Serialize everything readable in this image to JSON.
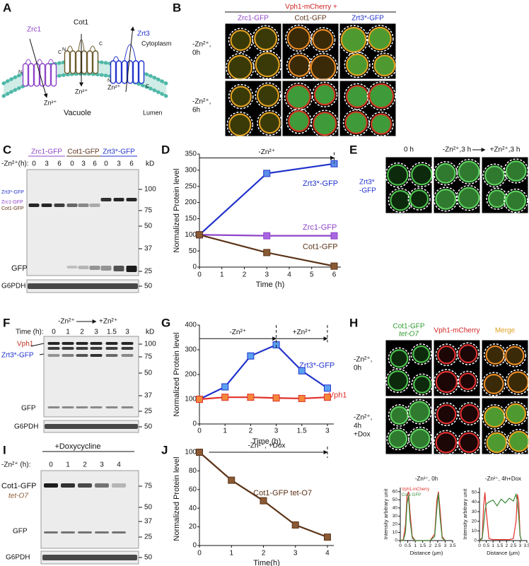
{
  "panel_a": {
    "letter": "A",
    "zrc1": "Zrc1",
    "cot1": "Cot1",
    "zrt3": "Zrt3",
    "cytoplasm": "Cytoplasm",
    "vacuole": "Vacuole",
    "lumen": "Lumen",
    "termini": [
      "N",
      "C",
      "N",
      "C",
      "N",
      "C"
    ],
    "ions": [
      "Zn²⁺",
      "Zn²⁺",
      "Zn²⁺"
    ]
  },
  "panel_b": {
    "letter": "B",
    "header": "Vph1-mCherry +",
    "columns": [
      "Zrc1-GFP",
      "Cot1-GFP",
      "Zrt3*-GFP"
    ],
    "rows": [
      [
        "-Zn²⁺,",
        "0h"
      ],
      [
        "-Zn²⁺,",
        "6h"
      ]
    ]
  },
  "panel_c": {
    "letter": "C",
    "groups": [
      "Zrc1-GFP",
      "Cot1-GFP",
      "Zrt3*-GFP"
    ],
    "axis_label": "-Zn²⁺(h):",
    "lanes": [
      "0",
      "3",
      "6",
      "0",
      "3",
      "6",
      "0",
      "3",
      "6"
    ],
    "kd": "kD",
    "markers": [
      "100",
      "75",
      "50",
      "37",
      "25",
      "50"
    ],
    "band_labels": [
      "Zrt3*-GFP",
      "Zrc1-GFP",
      "Cot1-GFP",
      "GFP",
      "G6PDH"
    ]
  },
  "panel_d": {
    "letter": "D"
  },
  "panel_e": {
    "letter": "E",
    "columns": [
      "0 h",
      "-Zn²⁺,3 h",
      "+Zn²⁺,3 h"
    ],
    "label": [
      "Zrt3*",
      "-GFP"
    ]
  },
  "panel_f": {
    "letter": "F",
    "treatments": [
      "-Zn²⁺",
      "+Zn²⁺"
    ],
    "axis_label": "Time (h):",
    "lanes": [
      "0",
      "1",
      "2",
      "3",
      "1.5",
      "3"
    ],
    "kd": "kD",
    "markers": [
      "100",
      "75",
      "50",
      "37",
      "25",
      "50"
    ],
    "band_labels": [
      "Vph1",
      "Zrt3*-GFP",
      "GFP",
      "G6PDH"
    ]
  },
  "panel_g": {
    "letter": "G"
  },
  "panel_h": {
    "letter": "H",
    "columns": [
      "Cot1-GFP",
      "tet-O7",
      "Vph1-mCherry",
      "Merge"
    ],
    "rows": [
      [
        "-Zn²⁺,",
        "0h"
      ],
      [
        "-Zn²⁺,",
        "4h",
        "+Dox"
      ]
    ]
  },
  "panel_i": {
    "letter": "I",
    "header": "+Doxycycline",
    "axis_label": "-Zn²⁺ (h):",
    "lanes": [
      "0",
      "1",
      "2",
      "3",
      "4"
    ],
    "markers": [
      "75",
      "50",
      "37",
      "25",
      "50"
    ],
    "band_labels": [
      "Cot1-GFP",
      "tet-O7",
      "GFP",
      "G6PDH"
    ]
  },
  "panel_j": {
    "letter": "J"
  },
  "chart_data": [
    {
      "type": "line",
      "xlabel": "Time (h)",
      "ylabel": "Normalized Protein level",
      "x": [
        0,
        3,
        6
      ],
      "xlim": [
        0,
        6.3
      ],
      "ylim": [
        0,
        350
      ],
      "xticks": [
        0,
        1,
        2,
        3,
        4,
        5,
        6
      ],
      "yticks": [
        0,
        50,
        100,
        150,
        200,
        250,
        300,
        350
      ],
      "marker": "square",
      "annotations": [
        "-Zn²⁺"
      ],
      "series": [
        {
          "name": "Zrt3*-GFP",
          "color": "#2233cc",
          "marker_color": "#5b8de8",
          "values": [
            100,
            290,
            320
          ]
        },
        {
          "name": "Zrc1-GFP",
          "color": "#8e44c9",
          "marker_color": "#a866e0",
          "values": [
            100,
            97,
            97
          ]
        },
        {
          "name": "Cot1-GFP",
          "color": "#5c3317",
          "marker_color": "#8a5a35",
          "values": [
            100,
            45,
            3
          ]
        }
      ]
    },
    {
      "type": "line",
      "xlabel": "Time (h)",
      "ylabel": "Normalized Protein level",
      "categories": [
        "0",
        "1",
        "2",
        "3",
        "1.5",
        "3"
      ],
      "ylim": [
        0,
        400
      ],
      "yticks": [
        0,
        100,
        200,
        300,
        400
      ],
      "marker": "square",
      "annotations": [
        "-Zn²⁺",
        "+Zn²⁺"
      ],
      "series": [
        {
          "name": "Zrt3*-GFP",
          "color": "#2233cc",
          "marker_color": "#5ba0f0",
          "values": [
            100,
            150,
            275,
            320,
            215,
            145
          ]
        },
        {
          "name": "Vph1",
          "color": "#e0302a",
          "marker_color": "#f4883a",
          "values": [
            100,
            108,
            108,
            105,
            103,
            108
          ]
        }
      ]
    },
    {
      "type": "line",
      "xlabel": "Time(h)",
      "ylabel": "Normalized Protein level",
      "x": [
        0,
        1,
        2,
        3,
        4
      ],
      "xlim": [
        0,
        4.2
      ],
      "ylim": [
        0,
        100
      ],
      "xticks": [
        0,
        1,
        2,
        3,
        4
      ],
      "yticks": [
        0,
        20,
        40,
        60,
        80,
        100
      ],
      "marker": "square",
      "annotations": [
        "-Zn²⁺, +Dox"
      ],
      "series": [
        {
          "name": "Cot1-GFP tet-O7",
          "color": "#5c3317",
          "marker_color": "#8a5a35",
          "values": [
            100,
            70,
            48,
            22,
            9
          ]
        }
      ]
    },
    {
      "type": "line",
      "title": "-Zn²⁺, 0h",
      "xlabel": "Distance (μm)",
      "ylabel": "Intensity arbitrary unit",
      "x": [
        0,
        0.2,
        0.35,
        0.45,
        0.55,
        0.65,
        0.8,
        1.0,
        1.5,
        2.0,
        2.3,
        2.45,
        2.55,
        2.65,
        2.8,
        3.0
      ],
      "xlim": [
        0,
        3.5
      ],
      "ylim": [
        0,
        65
      ],
      "xticks": [
        0,
        0.5,
        1,
        1.5,
        2,
        2.5,
        3,
        3.5
      ],
      "yticks": [
        0,
        10,
        20,
        30,
        40,
        50,
        60
      ],
      "series": [
        {
          "name": "Vph1-mCherry",
          "color": "#e0302a",
          "values": [
            0,
            1,
            20,
            55,
            60,
            35,
            5,
            0,
            0,
            0,
            8,
            50,
            60,
            40,
            5,
            0
          ]
        },
        {
          "name": "Cot1-GFP",
          "color": "#3a8a3a",
          "values": [
            0,
            0,
            10,
            45,
            55,
            25,
            3,
            0,
            0,
            0,
            5,
            40,
            58,
            30,
            3,
            0
          ]
        }
      ]
    },
    {
      "type": "line",
      "title": "-Zn²⁺, 4h+Dox",
      "xlabel": "Distance (μm)",
      "ylabel": "Intensity arbitrary unit",
      "x": [
        0,
        0.2,
        0.3,
        0.4,
        0.5,
        0.7,
        1.0,
        1.3,
        1.6,
        1.9,
        2.2,
        2.5,
        2.7,
        2.8,
        2.9,
        3.0,
        3.1
      ],
      "xlim": [
        0,
        3.5
      ],
      "ylim": [
        0,
        55
      ],
      "xticks": [
        0,
        0.5,
        1,
        1.5,
        2,
        2.5,
        3,
        3.5
      ],
      "yticks": [
        0,
        10,
        20,
        30,
        40,
        50
      ],
      "series": [
        {
          "name": "Vph1-mCherry",
          "color": "#e0302a",
          "values": [
            0,
            3,
            35,
            50,
            30,
            2,
            1,
            1,
            1,
            1,
            1,
            2,
            20,
            48,
            40,
            5,
            0
          ]
        },
        {
          "name": "Cot1-GFP",
          "color": "#3a8a3a",
          "values": [
            0,
            2,
            15,
            30,
            38,
            40,
            42,
            36,
            43,
            39,
            44,
            41,
            48,
            40,
            25,
            5,
            0
          ]
        }
      ]
    }
  ]
}
